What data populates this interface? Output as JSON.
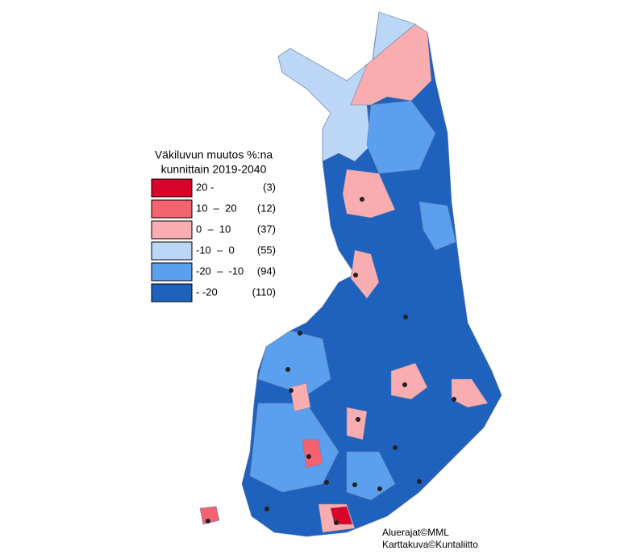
{
  "legend": {
    "title": [
      "Väkiluvun muutos %:na",
      "kunnittain 2019-2040"
    ],
    "items": [
      {
        "label": "20 -",
        "count": "(3)",
        "color": "#d9042b"
      },
      {
        "label": "10  –  20",
        "count": "(12)",
        "color": "#f4626f"
      },
      {
        "label": "0  –  10",
        "count": "(37)",
        "color": "#f9adb1"
      },
      {
        "label": "-10  –  0",
        "count": "(55)",
        "color": "#bcd6f6"
      },
      {
        "label": "-20  –  -10",
        "count": "(94)",
        "color": "#5ba0ee"
      },
      {
        "label": "- -20",
        "count": "(110)",
        "color": "#1f62bd"
      }
    ]
  },
  "credits": [
    "Aluerajat©MML",
    "Karttakuva©Kuntaliitto"
  ]
}
